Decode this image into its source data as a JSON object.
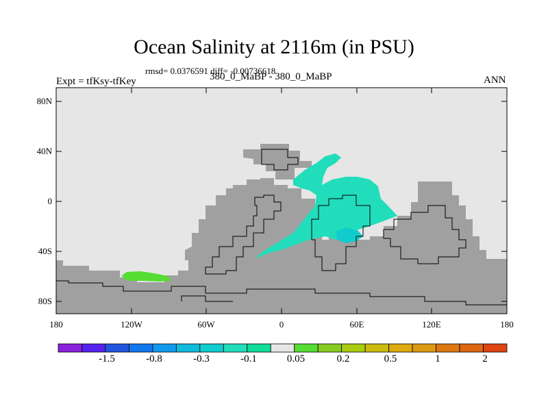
{
  "title": "Ocean Salinity at 2116m (in PSU)",
  "stats": "rmsd= 0.0376591 diff= -0.00736618",
  "experiment": "Expt = tfKsy-tfKey",
  "center_label": "380_0_MaBP - 380_0_MaBP",
  "season": "ANN",
  "colors": {
    "land": "#a0a0a0",
    "missing": "#e6e6e6",
    "anomaly_positive_small": "#55dd33",
    "anomaly_negative_small": "#22ddbb",
    "anomaly_negative_medium": "#11cccc"
  },
  "map": {
    "y_axis_labels": [
      "80N",
      "40N",
      "0",
      "40S",
      "80S"
    ],
    "x_axis_labels": [
      "180",
      "120W",
      "60W",
      "0",
      "60E",
      "120E",
      "180"
    ]
  },
  "colorbar": {
    "colors": [
      "#8822dd",
      "#5522ee",
      "#2255dd",
      "#1177ee",
      "#1199ee",
      "#11bbdd",
      "#11cccc",
      "#22ddbb",
      "#11dd99",
      "#e6e6e6",
      "#55dd33",
      "#88cc22",
      "#aacc11",
      "#ccbb11",
      "#ddaa11",
      "#dd9911",
      "#dd7711",
      "#dd6611",
      "#dd4411"
    ],
    "labels": [
      "-1.5",
      "-0.8",
      "-0.3",
      "-0.1",
      "0.05",
      "0.2",
      "0.5",
      "1",
      "2"
    ]
  }
}
